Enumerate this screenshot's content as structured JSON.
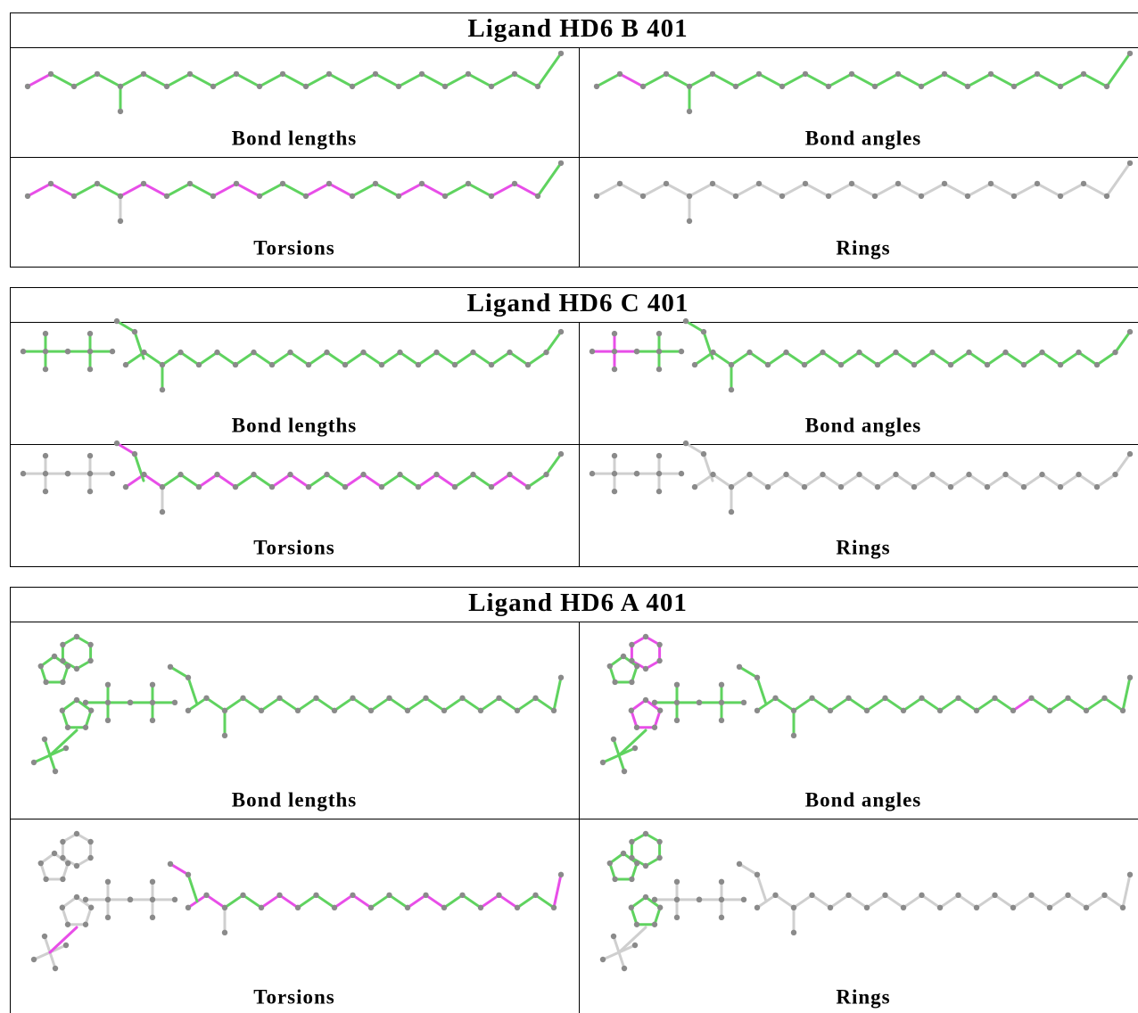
{
  "tables": [
    {
      "title": "Ligand HD6 B 401",
      "cells": [
        [
          "Bond lengths",
          "Bond angles"
        ],
        [
          "Torsions",
          "Rings"
        ]
      ]
    },
    {
      "title": "Ligand HD6 C 401",
      "cells": [
        [
          "Bond lengths",
          "Bond angles"
        ],
        [
          "Torsions",
          "Rings"
        ]
      ]
    },
    {
      "title": "Ligand HD6 A 401",
      "cells": [
        [
          "Bond lengths",
          "Bond angles"
        ],
        [
          "Torsions",
          "Rings"
        ]
      ]
    }
  ]
}
